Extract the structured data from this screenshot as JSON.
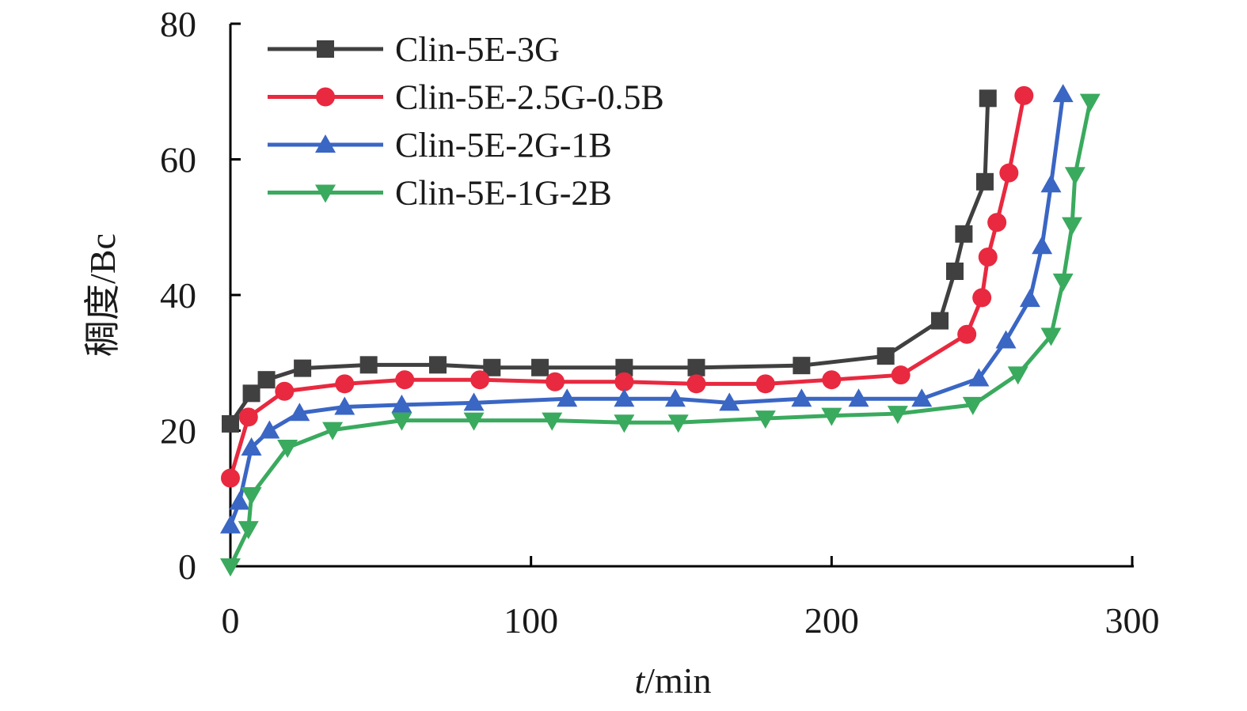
{
  "chart_data": {
    "type": "line",
    "xlabel_italic": "t",
    "xlabel_rest": "/min",
    "ylabel": "稠度/Bc",
    "xlim": [
      0,
      300
    ],
    "ylim": [
      0,
      80
    ],
    "xticks": [
      0,
      100,
      200,
      300
    ],
    "yticks": [
      0,
      20,
      40,
      60,
      80
    ],
    "grid": false,
    "legend_position": "top-left",
    "series": [
      {
        "name": "Clin-5E-3G",
        "color": "#404040",
        "marker": "square",
        "x": [
          0,
          7,
          12,
          24,
          46,
          69,
          87,
          103,
          131,
          155,
          190,
          218,
          236,
          241,
          244,
          251,
          252
        ],
        "y": [
          21,
          25.5,
          27.5,
          29.2,
          29.7,
          29.7,
          29.3,
          29.3,
          29.3,
          29.3,
          29.6,
          31,
          36.2,
          43.5,
          49,
          56.7,
          69
        ]
      },
      {
        "name": "Clin-5E-2.5G-0.5B",
        "color": "#e8293f",
        "marker": "circle",
        "x": [
          0,
          6,
          18,
          38,
          58,
          83,
          108,
          131,
          155,
          178,
          200,
          223,
          245,
          250,
          252,
          255,
          259,
          264
        ],
        "y": [
          13,
          22,
          25.8,
          26.9,
          27.5,
          27.5,
          27.2,
          27.2,
          26.9,
          26.9,
          27.5,
          28.2,
          34.2,
          39.6,
          45.6,
          50.7,
          58,
          69.4
        ]
      },
      {
        "name": "Clin-5E-2G-1B",
        "color": "#3a66c4",
        "marker": "triangle-up",
        "x": [
          0,
          3,
          7,
          13,
          23,
          38,
          57,
          81,
          112,
          131,
          148,
          166,
          190,
          209,
          230,
          249,
          258,
          266,
          270,
          273,
          277
        ],
        "y": [
          6,
          9.5,
          17.5,
          20,
          22.6,
          23.5,
          23.8,
          24.1,
          24.7,
          24.7,
          24.7,
          24.1,
          24.7,
          24.7,
          24.7,
          27.7,
          33.3,
          39.4,
          47.2,
          56.3,
          69.6
        ]
      },
      {
        "name": "Clin-5E-1G-2B",
        "color": "#3aaa5e",
        "marker": "triangle-down",
        "x": [
          0,
          6,
          7,
          19,
          34,
          57,
          81,
          107,
          131,
          149,
          178,
          200,
          222,
          247,
          262,
          273,
          277,
          280,
          281,
          286
        ],
        "y": [
          0,
          5.5,
          10.5,
          17.5,
          20.1,
          21.5,
          21.5,
          21.5,
          21.2,
          21.2,
          21.8,
          22.2,
          22.5,
          23.8,
          28.3,
          34,
          42,
          50.3,
          57.7,
          68.5
        ]
      }
    ]
  }
}
